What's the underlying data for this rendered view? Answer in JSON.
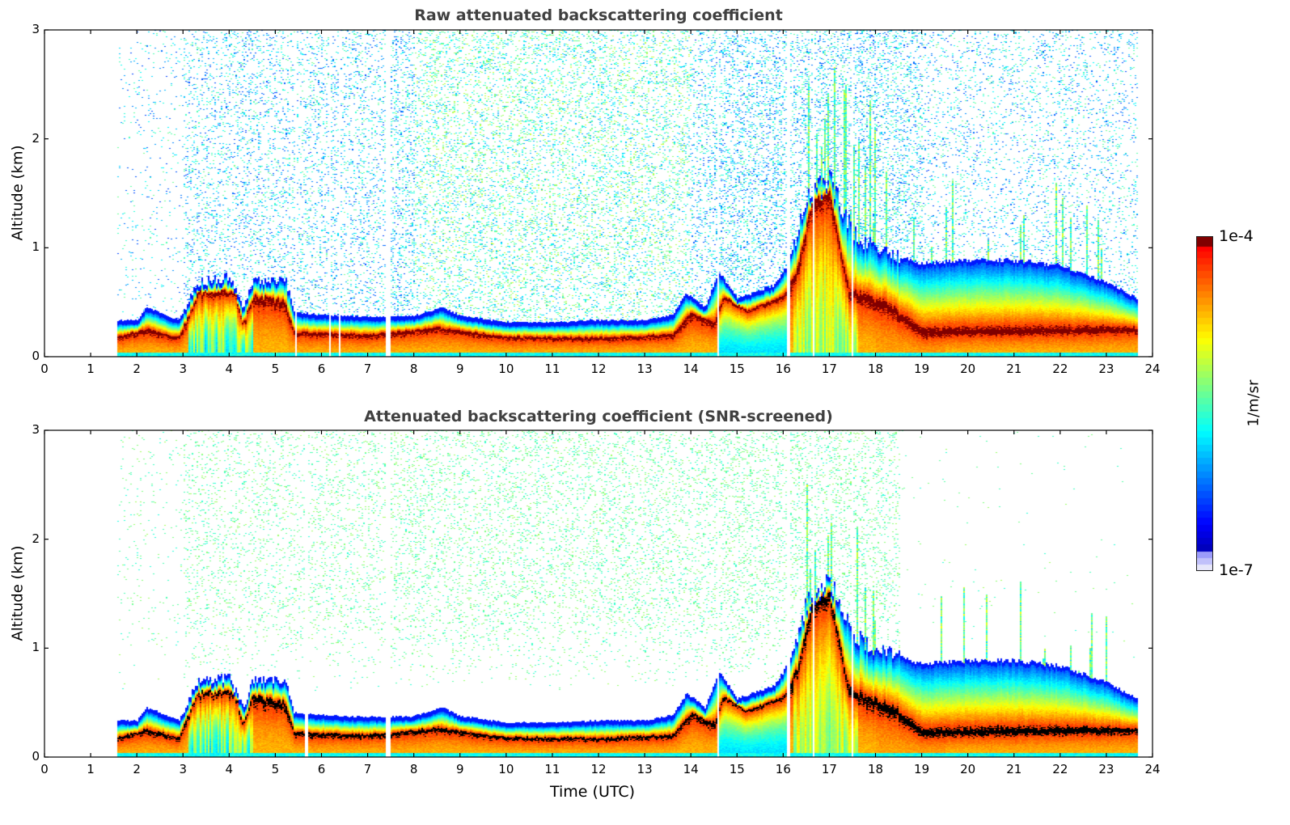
{
  "chart_data": [
    {
      "type": "heatmap",
      "title": "Raw attenuated backscattering coefficient",
      "xlabel": "",
      "ylabel": "Altitude (km)",
      "xlim": [
        0,
        24
      ],
      "ylim": [
        0,
        3
      ],
      "xticks": [
        "0",
        "1",
        "2",
        "3",
        "4",
        "5",
        "6",
        "7",
        "8",
        "9",
        "10",
        "11",
        "12",
        "13",
        "14",
        "15",
        "16",
        "17",
        "18",
        "19",
        "20",
        "21",
        "22",
        "23",
        "24"
      ],
      "yticks": [
        "0",
        "1",
        "2",
        "3"
      ],
      "screened": false
    },
    {
      "type": "heatmap",
      "title": "Attenuated backscattering coefficient (SNR-screened)",
      "xlabel": "Time (UTC)",
      "ylabel": "Altitude (km)",
      "xlim": [
        0,
        24
      ],
      "ylim": [
        0,
        3
      ],
      "xticks": [
        "0",
        "1",
        "2",
        "3",
        "4",
        "5",
        "6",
        "7",
        "8",
        "9",
        "10",
        "11",
        "12",
        "13",
        "14",
        "15",
        "16",
        "17",
        "18",
        "19",
        "20",
        "21",
        "22",
        "23",
        "24"
      ],
      "yticks": [
        "0",
        "1",
        "2",
        "3"
      ],
      "screened": true
    }
  ],
  "data_range_hours": [
    1.55,
    23.65
  ],
  "data_gaps_hours": [
    [
      7.38,
      7.47
    ],
    [
      14.55,
      14.61
    ],
    [
      16.05,
      16.13
    ],
    [
      16.62,
      16.66
    ],
    [
      17.45,
      17.5
    ]
  ],
  "boundary_layer_top_km": [
    [
      1.5,
      0.3
    ],
    [
      2,
      0.3
    ],
    [
      2.2,
      0.42
    ],
    [
      2.9,
      0.3
    ],
    [
      3.3,
      0.65
    ],
    [
      4,
      0.7
    ],
    [
      4.3,
      0.4
    ],
    [
      4.5,
      0.67
    ],
    [
      5.2,
      0.67
    ],
    [
      5.4,
      0.37
    ],
    [
      6,
      0.35
    ],
    [
      7,
      0.33
    ],
    [
      8,
      0.34
    ],
    [
      8.6,
      0.42
    ],
    [
      9,
      0.34
    ],
    [
      10,
      0.28
    ],
    [
      11,
      0.28
    ],
    [
      12,
      0.3
    ],
    [
      13,
      0.3
    ],
    [
      13.6,
      0.35
    ],
    [
      13.9,
      0.55
    ],
    [
      14.3,
      0.42
    ],
    [
      14.6,
      0.75
    ],
    [
      15,
      0.5
    ],
    [
      15.8,
      0.62
    ],
    [
      16.1,
      0.82
    ],
    [
      16.5,
      1.4
    ],
    [
      17,
      1.62
    ],
    [
      17.5,
      1.1
    ],
    [
      18,
      0.95
    ],
    [
      19,
      0.82
    ],
    [
      20,
      0.85
    ],
    [
      21,
      0.85
    ],
    [
      22,
      0.8
    ],
    [
      23,
      0.65
    ],
    [
      23.65,
      0.5
    ]
  ],
  "aerosol_layer_km": [
    [
      1.5,
      0.17
    ],
    [
      2.2,
      0.25
    ],
    [
      2.9,
      0.17
    ],
    [
      3.3,
      0.58
    ],
    [
      4.1,
      0.6
    ],
    [
      4.3,
      0.3
    ],
    [
      4.5,
      0.55
    ],
    [
      5.2,
      0.5
    ],
    [
      5.4,
      0.22
    ],
    [
      7,
      0.2
    ],
    [
      8.5,
      0.26
    ],
    [
      10,
      0.18
    ],
    [
      12,
      0.17
    ],
    [
      13.6,
      0.2
    ],
    [
      14,
      0.4
    ],
    [
      14.5,
      0.3
    ],
    [
      14.7,
      0.55
    ],
    [
      15.2,
      0.42
    ],
    [
      16,
      0.55
    ],
    [
      16.3,
      0.8
    ],
    [
      16.6,
      1.4
    ],
    [
      17,
      1.5
    ],
    [
      17.4,
      0.6
    ],
    [
      18,
      0.5
    ],
    [
      18.3,
      0.45
    ],
    [
      19,
      0.22
    ],
    [
      23.65,
      0.25
    ]
  ],
  "colorbar": {
    "label": "1/m/sr",
    "max_label": "1e-4",
    "min_label": "1e-7",
    "vmin": 1e-07,
    "vmax": 0.0001,
    "scale": "log",
    "colormap": "jet"
  }
}
